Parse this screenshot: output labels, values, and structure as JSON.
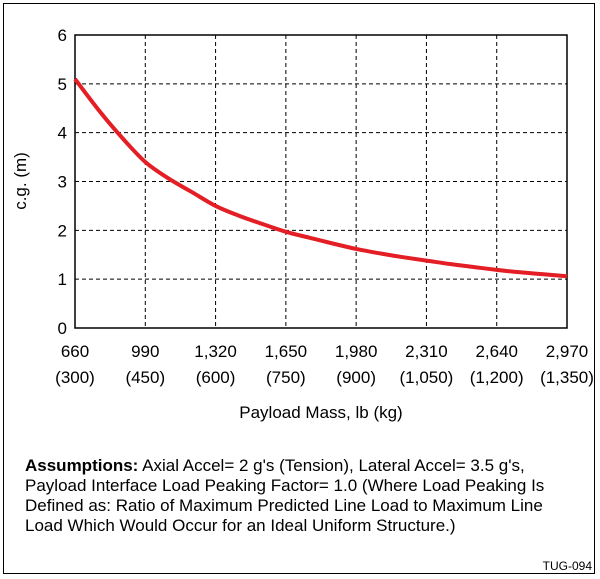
{
  "chart_data": {
    "type": "line",
    "xlabel": "Payload Mass, lb (kg)",
    "ylabel": "c.g. (m)",
    "xlim": [
      660,
      2970
    ],
    "ylim": [
      0,
      6
    ],
    "grid": true,
    "x_ticks": [
      {
        "value": 660,
        "label": "660",
        "sub": "(300)"
      },
      {
        "value": 990,
        "label": "990",
        "sub": "(450)"
      },
      {
        "value": 1320,
        "label": "1,320",
        "sub": "(600)"
      },
      {
        "value": 1650,
        "label": "1,650",
        "sub": "(750)"
      },
      {
        "value": 1980,
        "label": "1,980",
        "sub": "(900)"
      },
      {
        "value": 2310,
        "label": "2,310",
        "sub": "(1,050)"
      },
      {
        "value": 2640,
        "label": "2,640",
        "sub": "(1,200)"
      },
      {
        "value": 2970,
        "label": "2,970",
        "sub": "(1,350)"
      }
    ],
    "y_ticks": [
      0,
      1,
      2,
      3,
      4,
      5,
      6
    ],
    "series": [
      {
        "color": "#e31e24",
        "x": [
          660,
          770,
          880,
          990,
          1100,
          1210,
          1320,
          1430,
          1540,
          1650,
          1760,
          1870,
          1980,
          2090,
          2200,
          2310,
          2420,
          2530,
          2640,
          2750,
          2860,
          2970
        ],
        "y": [
          5.1,
          4.47,
          3.9,
          3.4,
          3.06,
          2.78,
          2.5,
          2.3,
          2.13,
          1.97,
          1.85,
          1.73,
          1.62,
          1.53,
          1.45,
          1.38,
          1.31,
          1.25,
          1.19,
          1.14,
          1.1,
          1.06
        ]
      }
    ]
  },
  "notes": {
    "assumptions_label": "Assumptions:",
    "assumptions_text": " Axial Accel= 2 g's (Tension), Lateral Accel= 3.5 g's, Payload Interface Load Peaking Factor= 1.0 (Where Load Peaking Is Defined as: Ratio of Maximum Predicted Line Load to Maximum Line Load Which Would Occur for an Ideal Uniform Structure.)"
  },
  "figure_id": "TUG-094"
}
